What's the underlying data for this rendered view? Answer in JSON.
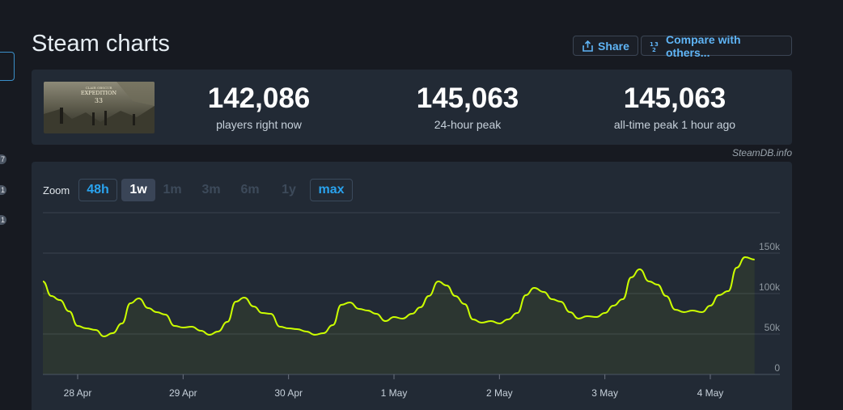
{
  "page": {
    "title": "Steam charts"
  },
  "header_buttons": {
    "share": "Share",
    "compare": "Compare with others..."
  },
  "left_sidebar": {
    "badges": [
      "7",
      "1",
      "1"
    ]
  },
  "game": {
    "thumbnail_title_small": "CLAIR OBSCUR",
    "thumbnail_title": "EXPEDITION",
    "thumbnail_number": "33"
  },
  "stats": [
    {
      "value": "142,086",
      "label": "players right now"
    },
    {
      "value": "145,063",
      "label": "24-hour peak"
    },
    {
      "value": "145,063",
      "label": "all-time peak 1 hour ago"
    }
  ],
  "credit": "SteamDB.info",
  "zoom": {
    "label": "Zoom",
    "options": [
      {
        "label": "48h",
        "state": "outline"
      },
      {
        "label": "1w",
        "state": "active"
      },
      {
        "label": "1m",
        "state": "disabled"
      },
      {
        "label": "3m",
        "state": "disabled"
      },
      {
        "label": "6m",
        "state": "disabled"
      },
      {
        "label": "1y",
        "state": "disabled"
      },
      {
        "label": "max",
        "state": "outline"
      }
    ]
  },
  "chart_data": {
    "type": "area",
    "title": "",
    "xlabel": "",
    "ylabel": "",
    "x_unit": "days",
    "x_range": [
      -0.33,
      6.66
    ],
    "ylim": [
      0,
      200000
    ],
    "yticks": [
      0,
      50000,
      100000,
      150000
    ],
    "ytick_labels": [
      "0",
      "50k",
      "100k",
      "150k"
    ],
    "xticks": [
      0,
      1,
      2,
      3,
      4,
      5,
      6
    ],
    "xtick_labels": [
      "28 Apr",
      "29 Apr",
      "30 Apr",
      "1 May",
      "2 May",
      "3 May",
      "4 May"
    ],
    "grid": true,
    "line_color": "#ccff00",
    "series": [
      {
        "points": [
          [
            -0.33,
            115000
          ],
          [
            -0.25,
            97000
          ],
          [
            -0.17,
            92000
          ],
          [
            -0.08,
            78000
          ],
          [
            0.0,
            60000
          ],
          [
            0.08,
            57000
          ],
          [
            0.17,
            55000
          ],
          [
            0.25,
            47000
          ],
          [
            0.33,
            51000
          ],
          [
            0.42,
            63000
          ],
          [
            0.5,
            88000
          ],
          [
            0.58,
            94000
          ],
          [
            0.67,
            82000
          ],
          [
            0.75,
            77000
          ],
          [
            0.83,
            74000
          ],
          [
            0.92,
            60000
          ],
          [
            1.0,
            58000
          ],
          [
            1.08,
            59000
          ],
          [
            1.17,
            54000
          ],
          [
            1.25,
            49000
          ],
          [
            1.33,
            53000
          ],
          [
            1.42,
            65000
          ],
          [
            1.5,
            90000
          ],
          [
            1.58,
            95000
          ],
          [
            1.67,
            84000
          ],
          [
            1.75,
            76000
          ],
          [
            1.83,
            75000
          ],
          [
            1.92,
            59000
          ],
          [
            2.0,
            57000
          ],
          [
            2.08,
            56000
          ],
          [
            2.17,
            53000
          ],
          [
            2.25,
            49000
          ],
          [
            2.33,
            51000
          ],
          [
            2.42,
            61000
          ],
          [
            2.5,
            86000
          ],
          [
            2.58,
            89000
          ],
          [
            2.67,
            81000
          ],
          [
            2.75,
            79000
          ],
          [
            2.83,
            75000
          ],
          [
            2.92,
            66000
          ],
          [
            3.0,
            71000
          ],
          [
            3.08,
            69000
          ],
          [
            3.17,
            75000
          ],
          [
            3.25,
            83000
          ],
          [
            3.33,
            97000
          ],
          [
            3.42,
            115000
          ],
          [
            3.5,
            110000
          ],
          [
            3.58,
            97000
          ],
          [
            3.67,
            87000
          ],
          [
            3.75,
            68000
          ],
          [
            3.83,
            64000
          ],
          [
            3.92,
            66000
          ],
          [
            4.0,
            63000
          ],
          [
            4.08,
            68000
          ],
          [
            4.17,
            76000
          ],
          [
            4.25,
            98000
          ],
          [
            4.33,
            107000
          ],
          [
            4.42,
            102000
          ],
          [
            4.5,
            93000
          ],
          [
            4.58,
            90000
          ],
          [
            4.67,
            77000
          ],
          [
            4.75,
            69000
          ],
          [
            4.83,
            72000
          ],
          [
            4.92,
            71000
          ],
          [
            5.0,
            76000
          ],
          [
            5.08,
            85000
          ],
          [
            5.17,
            93000
          ],
          [
            5.25,
            120000
          ],
          [
            5.33,
            130000
          ],
          [
            5.42,
            115000
          ],
          [
            5.5,
            111000
          ],
          [
            5.58,
            97000
          ],
          [
            5.67,
            80000
          ],
          [
            5.75,
            77000
          ],
          [
            5.83,
            79000
          ],
          [
            5.92,
            77000
          ],
          [
            6.0,
            85000
          ],
          [
            6.08,
            98000
          ],
          [
            6.17,
            103000
          ],
          [
            6.25,
            132000
          ],
          [
            6.33,
            145000
          ],
          [
            6.42,
            142000
          ]
        ]
      }
    ]
  }
}
